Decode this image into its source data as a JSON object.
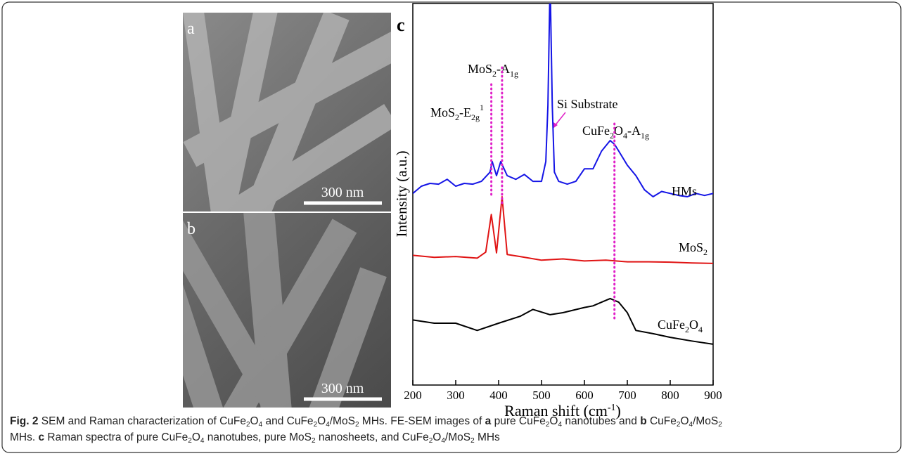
{
  "panel_a": {
    "letter": "a",
    "scale_bar": "300 nm"
  },
  "panel_b": {
    "letter": "b",
    "scale_bar": "300 nm"
  },
  "chart_data": {
    "type": "line",
    "panel_letter": "c",
    "x_label": [
      "Raman shift (cm",
      "-1",
      ")"
    ],
    "y_label": "Intensity (a.u.)",
    "xlim": [
      200,
      900
    ],
    "ylim": [
      5.6,
      100
    ],
    "xticks": [
      200,
      300,
      400,
      500,
      600,
      700,
      800,
      900
    ],
    "series": [
      {
        "name": "HMs",
        "color": "#1414e6",
        "x": [
          200,
          220,
          240,
          260,
          280,
          300,
          320,
          340,
          360,
          380,
          385,
          395,
          405,
          420,
          440,
          460,
          480,
          500,
          510,
          515,
          520,
          525,
          530,
          540,
          560,
          580,
          600,
          620,
          640,
          660,
          670,
          680,
          700,
          720,
          740,
          760,
          780,
          800,
          820,
          840,
          860,
          880,
          900
        ],
        "values": [
          53.0,
          54.8,
          55.5,
          55.3,
          56.5,
          54.8,
          55.5,
          55.3,
          56.0,
          58.3,
          60.9,
          57.4,
          60.9,
          57.4,
          56.5,
          57.7,
          56.0,
          56.0,
          60.9,
          74.8,
          106,
          74.8,
          58.3,
          56.0,
          55.3,
          56.0,
          59.1,
          59.1,
          63.5,
          66.1,
          65.2,
          63.5,
          60.0,
          57.4,
          53.9,
          52.2,
          53.5,
          53.0,
          52.5,
          52.2,
          53.0,
          52.5,
          53.0
        ]
      },
      {
        "name": "MoS2",
        "color": "#e01414",
        "x": [
          200,
          250,
          300,
          350,
          370,
          383,
          395,
          408,
          420,
          450,
          500,
          550,
          600,
          650,
          700,
          750,
          800,
          850,
          900
        ],
        "values": [
          37.7,
          37.2,
          37.4,
          37.0,
          38.5,
          47.8,
          38.3,
          52.2,
          37.9,
          37.4,
          36.5,
          36.8,
          36.3,
          36.5,
          36.1,
          36.1,
          36.0,
          35.8,
          35.7
        ]
      },
      {
        "name": "CuFe2O4",
        "color": "#000000",
        "x": [
          200,
          250,
          300,
          350,
          400,
          450,
          480,
          520,
          550,
          600,
          620,
          640,
          660,
          680,
          700,
          720,
          760,
          800,
          850,
          900
        ],
        "values": [
          21.7,
          20.9,
          20.9,
          19.1,
          20.9,
          22.6,
          24.3,
          23.0,
          23.5,
          24.8,
          25.2,
          26.1,
          27.0,
          26.1,
          23.5,
          19.1,
          18.3,
          17.4,
          16.5,
          15.7
        ]
      }
    ],
    "annotations": [
      {
        "x": 383,
        "label": [
          "MoS",
          "2",
          "-E",
          "2g",
          "1"
        ],
        "color": "#e020c8"
      },
      {
        "x": 408,
        "label": [
          "MoS",
          "2",
          "-A",
          "1g"
        ],
        "color": "#e020c8"
      },
      {
        "x": 670,
        "label": [
          "CuFe",
          "2",
          "O",
          "4",
          "-A",
          "1g"
        ],
        "color": "#e020c8"
      }
    ],
    "arrow_label": "Si Substrate"
  },
  "caption": [
    "Fig. 2",
    " SEM and Raman characterization of CuFe",
    "2",
    "O",
    "4",
    " and CuFe",
    "2",
    "O",
    "4",
    "/MoS",
    "2",
    " MHs. FE-SEM images of ",
    "a",
    " pure CuFe",
    "2",
    "O",
    "4",
    " nanotubes and ",
    "b",
    " CuFe",
    "2",
    "O",
    "4",
    "/MoS",
    "2",
    " MHs. ",
    "c",
    " Raman spectra of pure CuFe",
    "2",
    "O",
    "4",
    " nanotubes, pure MoS",
    "2",
    " nanosheets, and CuFe",
    "2",
    "O",
    "4",
    "/MoS",
    "2",
    " MHs"
  ]
}
